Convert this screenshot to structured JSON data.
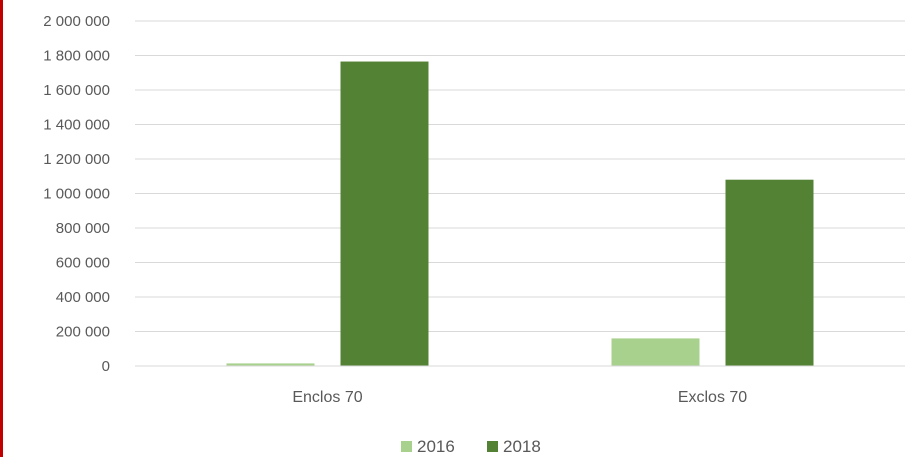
{
  "colors": {
    "series_2016": "#a9d18e",
    "series_2018": "#548235",
    "gridline": "#d9d9d9",
    "tick_text": "#595959",
    "border_accent": "#c00000"
  },
  "chart_data": {
    "type": "bar",
    "title": "",
    "xlabel": "",
    "ylabel": "",
    "categories": [
      "Enclos 70",
      "Exclos 70"
    ],
    "series": [
      {
        "name": "2016",
        "values": [
          15000,
          160000
        ]
      },
      {
        "name": "2018",
        "values": [
          1765000,
          1080000
        ]
      }
    ],
    "ylim": [
      0,
      2000000
    ],
    "yticks": [
      0,
      200000,
      400000,
      600000,
      800000,
      1000000,
      1200000,
      1400000,
      1600000,
      1800000,
      2000000
    ],
    "ytick_labels": [
      "0",
      "200 000",
      "400 000",
      "600 000",
      "800 000",
      "1 000 000",
      "1 200 000",
      "1 400 000",
      "1 600 000",
      "1 800 000",
      "2 000 000"
    ],
    "grid": true,
    "legend_position": "bottom"
  }
}
